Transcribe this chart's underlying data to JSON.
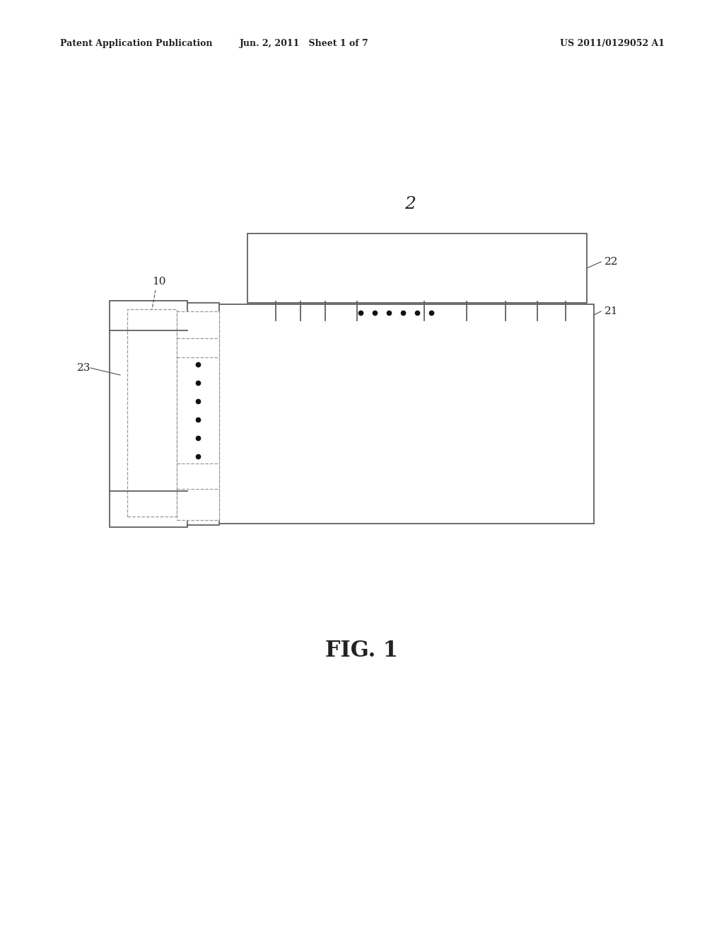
{
  "bg_color": "#ffffff",
  "header_left": "Patent Application Publication",
  "header_mid": "Jun. 2, 2011   Sheet 1 of 7",
  "header_right": "US 2011/0129052 A1",
  "fig_label": "FIG. 1",
  "label_2": "2",
  "label_21": "21",
  "label_22": "22",
  "label_23": "23",
  "label_10": "10",
  "line_color": "#606060",
  "dot_color": "#111111",
  "text_color": "#222222",
  "header_fontsize": 9.0,
  "label_fontsize": 11,
  "fig_label_fontsize": 22
}
